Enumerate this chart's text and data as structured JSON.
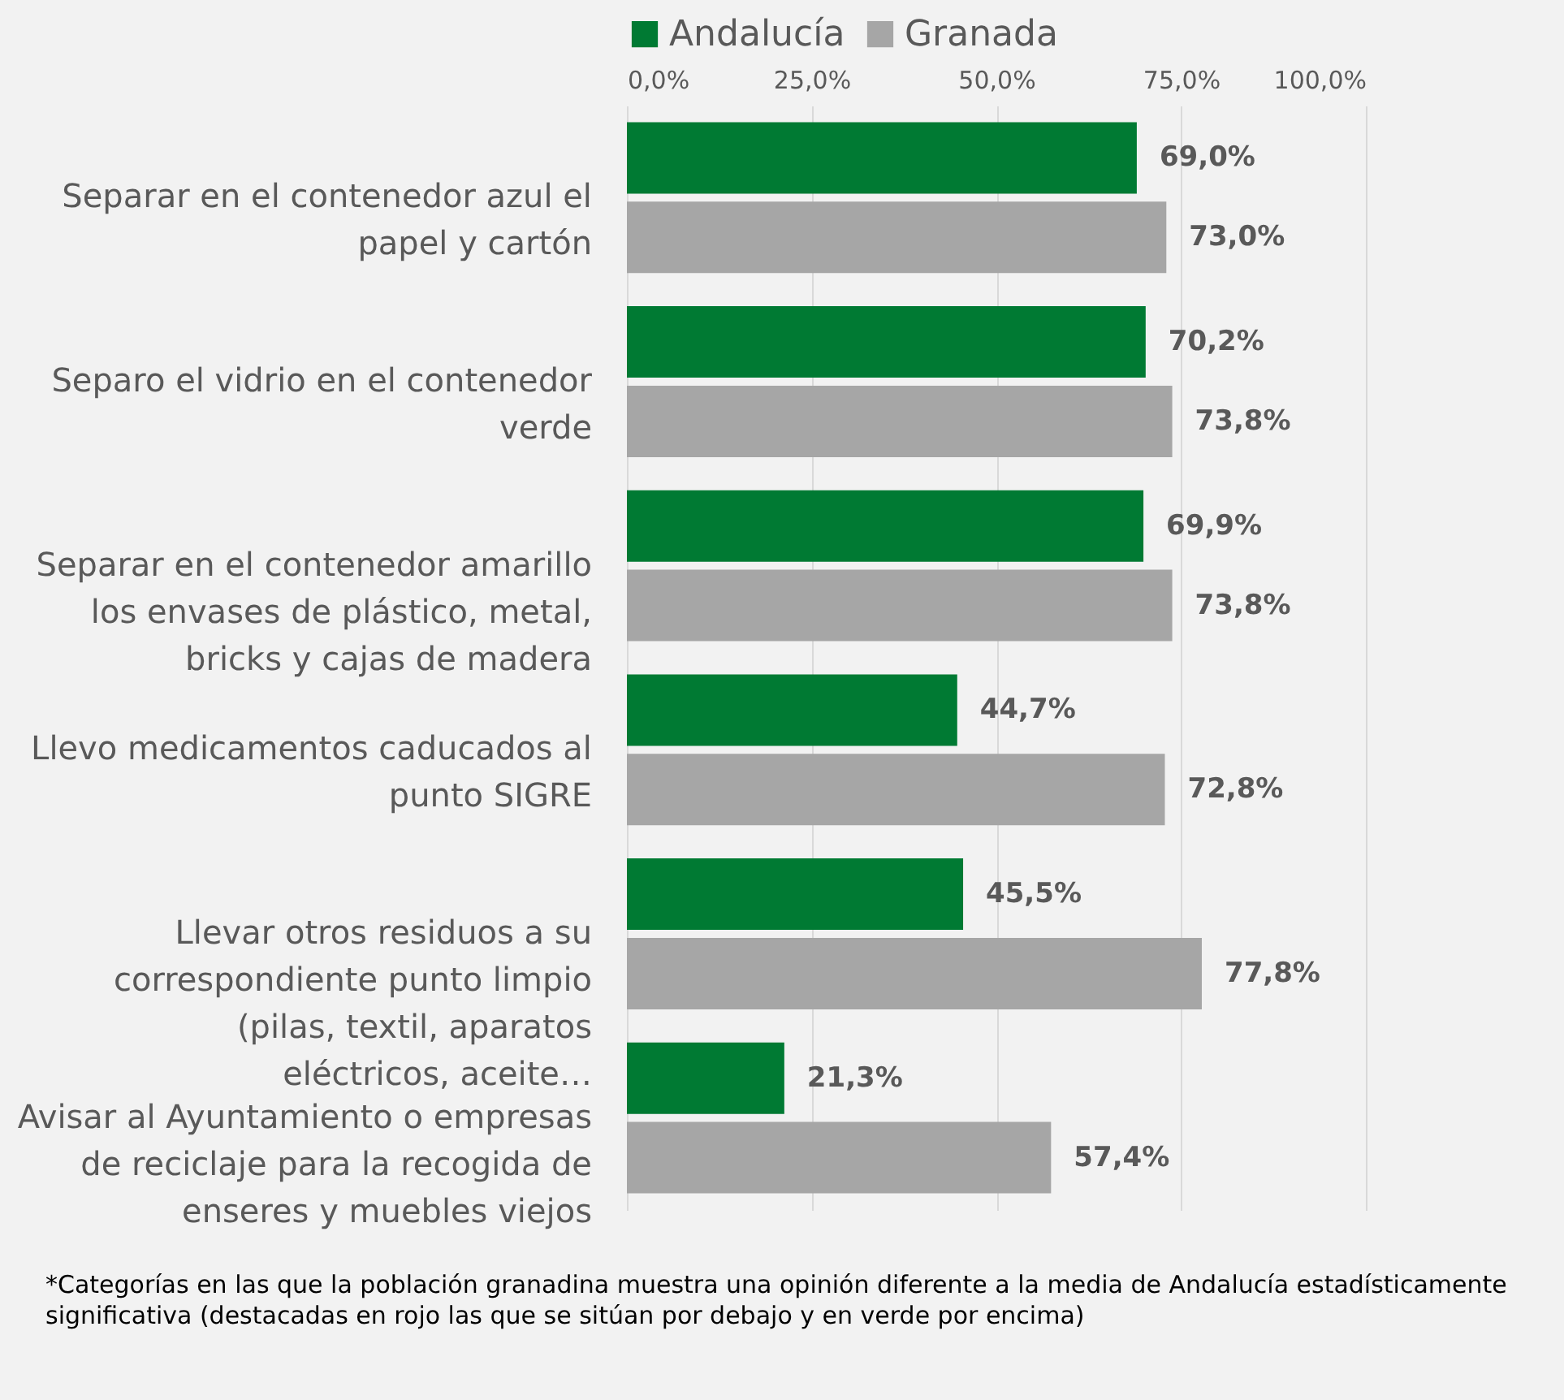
{
  "chart_data": {
    "type": "bar",
    "orientation": "horizontal",
    "categories": [
      "Separar en el contenedor azul el papel y cartón",
      "Separo el vidrio en el contenedor verde",
      "Separar en el contenedor amarillo los envases de plástico, metal, bricks y cajas de madera",
      "Llevo medicamentos caducados al punto SIGRE",
      "Llevar otros residuos a su correspondiente punto limpio (pilas, textil, aparatos eléctricos, aceite…",
      "Avisar al Ayuntamiento o empresas de reciclaje para la recogida de enseres y muebles viejos"
    ],
    "series": [
      {
        "name": "Andalucía",
        "color": "#007a33",
        "values": [
          69.0,
          70.2,
          69.9,
          44.7,
          45.5,
          21.3
        ],
        "value_labels": [
          "69,0%",
          "70,2%",
          "69,9%",
          "44,7%",
          "45,5%",
          "21,3%"
        ]
      },
      {
        "name": "Granada",
        "color": "#a6a6a6",
        "values": [
          73.0,
          73.8,
          73.8,
          72.8,
          77.8,
          57.4
        ],
        "value_labels": [
          "73,0%",
          "73,8%",
          "73,8%",
          "72,8%",
          "77,8%",
          "57,4%"
        ]
      }
    ],
    "xlim": [
      0,
      100
    ],
    "xticks": [
      {
        "value": 0,
        "label": "0,0%"
      },
      {
        "value": 25,
        "label": "25,0%"
      },
      {
        "value": 50,
        "label": "50,0%"
      },
      {
        "value": 75,
        "label": "75,0%"
      },
      {
        "value": 100,
        "label": "100,0%"
      }
    ],
    "grid": "x",
    "legend": "top",
    "annotations": [
      "*Categorías en las que la población granadina muestra una opinión diferente a la media de Andalucía estadísticamente significativa (destacadas en rojo las que se sitúan por debajo y en verde por encima)"
    ]
  }
}
